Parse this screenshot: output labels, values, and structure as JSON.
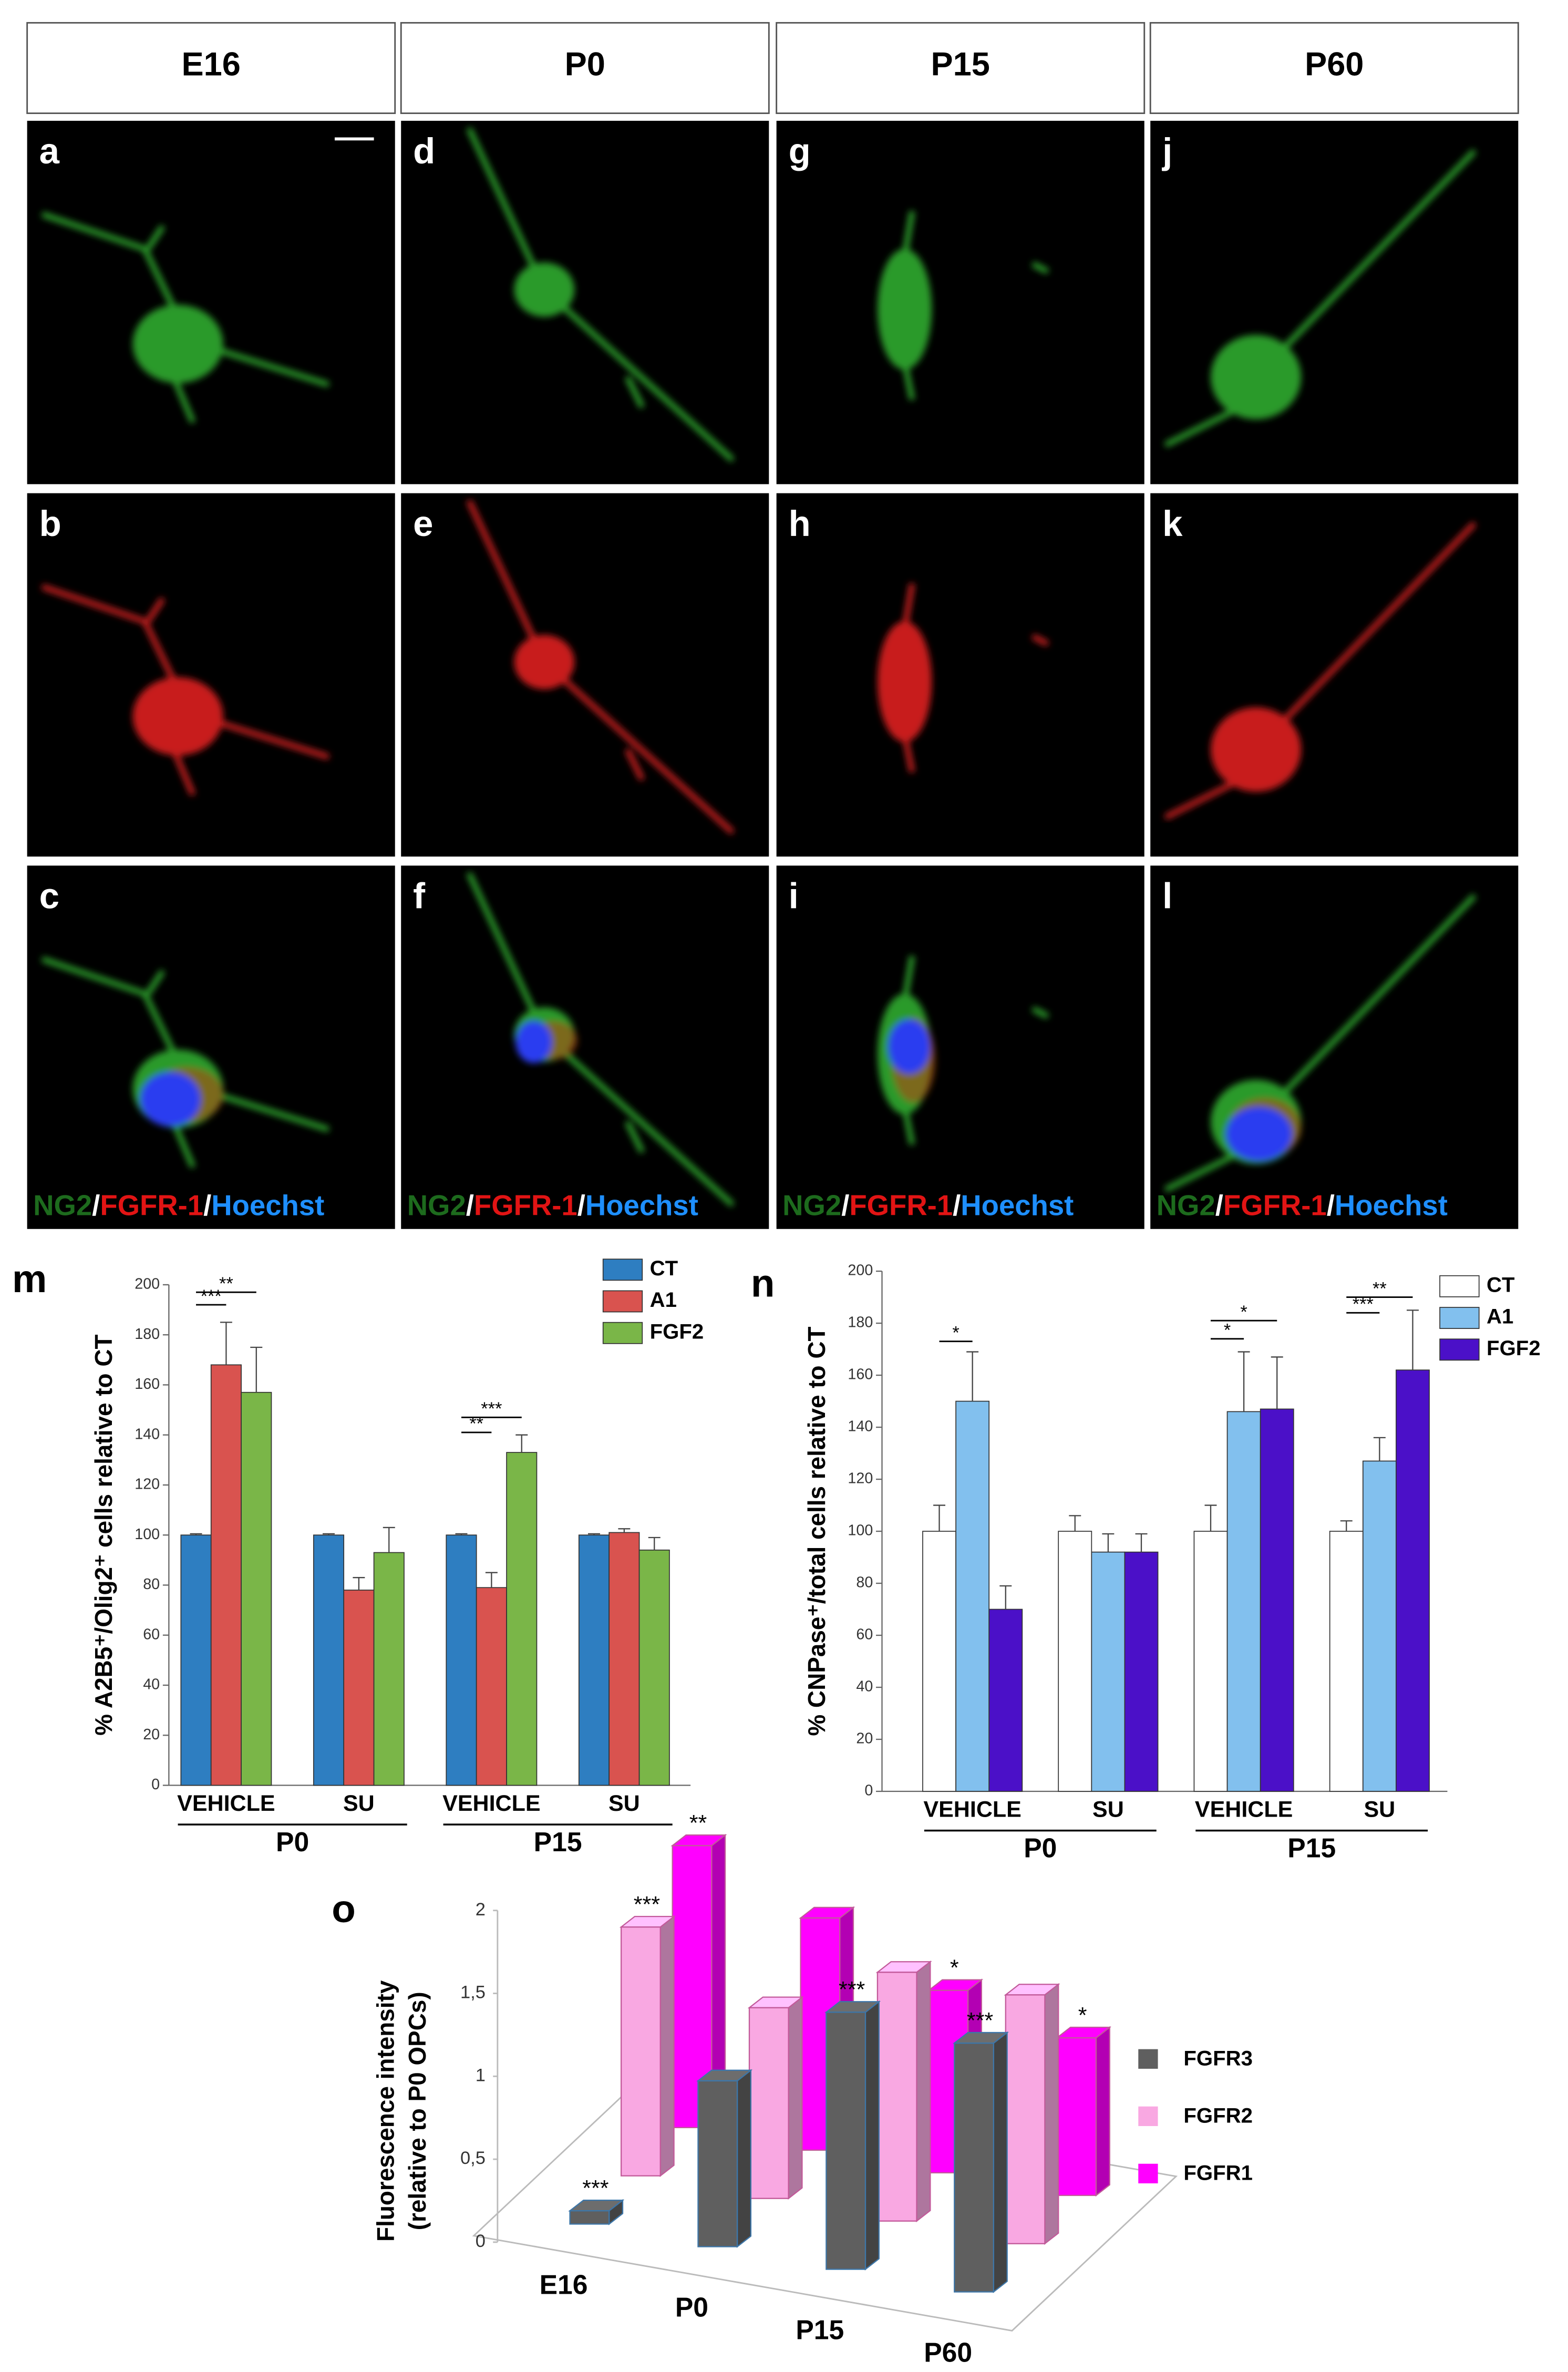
{
  "headers": [
    "E16",
    "P0",
    "P15",
    "P60"
  ],
  "panels": {
    "letters": [
      [
        "a",
        "b",
        "c"
      ],
      [
        "d",
        "e",
        "f"
      ],
      [
        "g",
        "h",
        "i"
      ],
      [
        "j",
        "k",
        "l"
      ]
    ],
    "channel_labels": [
      "NG2",
      "FGFR-1",
      [
        "NG2",
        "/",
        "FGFR-1",
        "/",
        "Hoechst"
      ]
    ]
  },
  "chart_data": [
    {
      "type": "bar",
      "panel_label": "m",
      "ylabel": "% A2B5⁺/Olig2⁺ cells relative to CT",
      "categories": [
        "VEHICLE",
        "SU",
        "VEHICLE",
        "SU"
      ],
      "groups": [
        "P0",
        "P15"
      ],
      "ylim": [
        0,
        200
      ],
      "yticks": [
        0,
        20,
        40,
        60,
        80,
        100,
        120,
        140,
        160,
        180,
        200
      ],
      "series": [
        {
          "name": "CT",
          "color": "#2e7ec1",
          "values": [
            100,
            100,
            100,
            100
          ],
          "errors": [
            0.5,
            0.5,
            0.5,
            0.5
          ]
        },
        {
          "name": "A1",
          "color": "#d9534f",
          "values": [
            168,
            78,
            79,
            101
          ],
          "errors": [
            17,
            5,
            6,
            1.5
          ]
        },
        {
          "name": "FGF2",
          "color": "#7ab648",
          "values": [
            157,
            93,
            133,
            94
          ],
          "errors": [
            18,
            10,
            7,
            5
          ]
        }
      ],
      "significance": [
        "***",
        "**",
        "***",
        "**"
      ],
      "legend": "top-right"
    },
    {
      "type": "bar",
      "panel_label": "n",
      "ylabel": "% CNPase⁺/total cells relative to CT",
      "categories": [
        "VEHICLE",
        "SU",
        "VEHICLE",
        "SU"
      ],
      "groups": [
        "P0",
        "P15"
      ],
      "ylim": [
        0,
        200
      ],
      "yticks": [
        0,
        20,
        40,
        60,
        80,
        100,
        120,
        140,
        160,
        180,
        200
      ],
      "series": [
        {
          "name": "CT",
          "color": "#ffffff",
          "values": [
            100,
            100,
            100,
            100
          ],
          "errors": [
            10,
            6,
            10,
            4
          ]
        },
        {
          "name": "A1",
          "color": "#82c0ee",
          "values": [
            150,
            92,
            146,
            127
          ],
          "errors": [
            19,
            7,
            23,
            9
          ]
        },
        {
          "name": "FGF2",
          "color": "#4b10c8",
          "values": [
            70,
            92,
            147,
            162
          ],
          "errors": [
            9,
            7,
            20,
            23
          ]
        }
      ],
      "significance": [
        "*",
        "*",
        "*",
        "**",
        "***"
      ],
      "legend": "top-right"
    },
    {
      "type": "bar3d",
      "panel_label": "o",
      "ylabel": [
        "Fluorescence intensity",
        "(relative to P0 OPCs)"
      ],
      "categories": [
        "E16",
        "P0",
        "P15",
        "P60"
      ],
      "ylim": [
        0,
        2
      ],
      "yticks": [
        0,
        {
          "value": 0.5,
          "label": "0,5"
        },
        1,
        {
          "value": 1.5,
          "label": "1,5"
        },
        2
      ],
      "series": [
        {
          "name": "FGFR3",
          "color": "#5f5f5f",
          "values": [
            0.08,
            1.0,
            1.55,
            1.5
          ],
          "annotations": [
            "***",
            null,
            "***",
            "***"
          ]
        },
        {
          "name": "FGFR2",
          "color": "#f9a8e2",
          "values": [
            1.5,
            1.15,
            1.5,
            1.5
          ],
          "annotations": [
            "***",
            null,
            null,
            null
          ]
        },
        {
          "name": "FGFR1",
          "color": "#ff00ff",
          "values": [
            1.7,
            1.4,
            1.1,
            0.95
          ],
          "annotations": [
            "**",
            null,
            "*",
            "*"
          ]
        }
      ],
      "legend": "right"
    }
  ]
}
